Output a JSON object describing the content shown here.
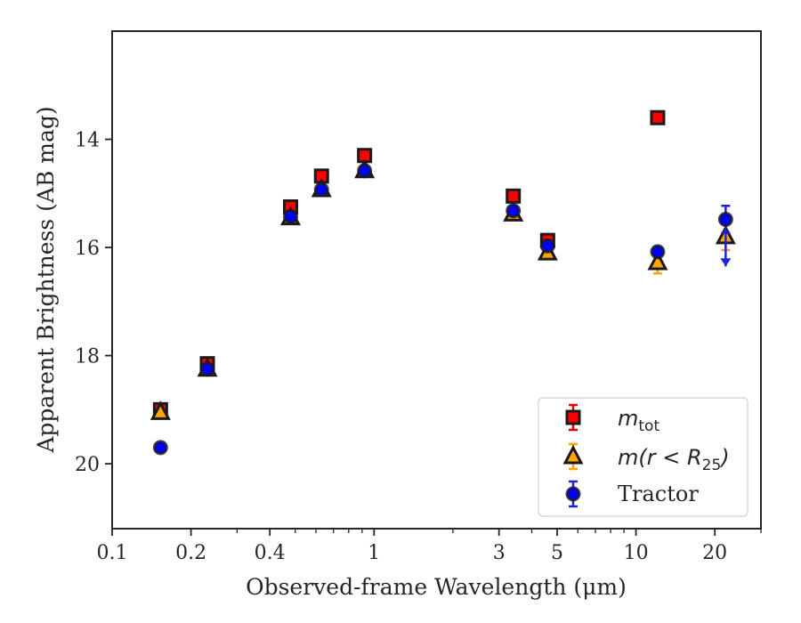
{
  "chart_data": {
    "type": "scatter",
    "xlabel": "Observed-frame Wavelength (μm)",
    "ylabel": "Apparent Brightness (AB mag)",
    "xscale": "log",
    "xlim": [
      0.1,
      30
    ],
    "ylim": [
      21.2,
      12.0
    ],
    "y_inverted": true,
    "xticks": [
      0.1,
      0.2,
      0.4,
      1,
      3,
      5,
      10,
      20
    ],
    "xtick_labels": [
      "0.1",
      "0.2",
      "0.4",
      "1",
      "3",
      "5",
      "10",
      "20"
    ],
    "yticks": [
      14,
      16,
      18,
      20
    ],
    "ytick_labels": [
      "14",
      "16",
      "18",
      "20"
    ],
    "grid": false,
    "legend_position": "bottom-right",
    "series": [
      {
        "name": "m_tot",
        "marker": "square",
        "color": "#ff0000",
        "edgecolor": "#1a1a1a",
        "errcolor": "#e00000",
        "points": [
          {
            "x": 0.153,
            "y": 19.0,
            "err": 0.08
          },
          {
            "x": 0.231,
            "y": 18.15,
            "err": 0.05
          },
          {
            "x": 0.48,
            "y": 15.25,
            "err": 0.03
          },
          {
            "x": 0.63,
            "y": 14.68,
            "err": 0.03
          },
          {
            "x": 0.92,
            "y": 14.3,
            "err": 0.03
          },
          {
            "x": 3.4,
            "y": 15.05,
            "err": 0.03
          },
          {
            "x": 4.6,
            "y": 15.87,
            "err": 0.03
          },
          {
            "x": 12.1,
            "y": 13.6,
            "err": 0.03
          }
        ]
      },
      {
        "name": "m(r < R25)",
        "marker": "triangle",
        "color": "#ffa500",
        "edgecolor": "#1a1a1a",
        "errcolor": "#ffa500",
        "points": [
          {
            "x": 0.153,
            "y": 19.05,
            "err": 0.05
          },
          {
            "x": 0.231,
            "y": 18.25,
            "err": 0.05
          },
          {
            "x": 0.48,
            "y": 15.45,
            "err": 0.03
          },
          {
            "x": 0.63,
            "y": 14.93,
            "err": 0.03
          },
          {
            "x": 0.92,
            "y": 14.58,
            "err": 0.03
          },
          {
            "x": 3.4,
            "y": 15.38,
            "err": 0.03
          },
          {
            "x": 4.6,
            "y": 16.1,
            "err": 0.05
          },
          {
            "x": 12.1,
            "y": 16.28,
            "err": 0.2
          },
          {
            "x": 22.0,
            "y": 15.8,
            "err": 0.25
          }
        ]
      },
      {
        "name": "Tractor",
        "marker": "circle",
        "color": "#0000ff",
        "edgecolor": "#1a1a1a",
        "errcolor": "#2020e0",
        "points": [
          {
            "x": 0.153,
            "y": 19.7,
            "err": 0.05
          },
          {
            "x": 0.231,
            "y": 18.25,
            "err": 0.05
          },
          {
            "x": 0.48,
            "y": 15.43,
            "err": 0.03
          },
          {
            "x": 0.63,
            "y": 14.93,
            "err": 0.03
          },
          {
            "x": 0.92,
            "y": 14.58,
            "err": 0.03
          },
          {
            "x": 3.4,
            "y": 15.32,
            "err": 0.03
          },
          {
            "x": 4.6,
            "y": 15.97,
            "err": 0.03
          },
          {
            "x": 12.1,
            "y": 16.08,
            "err": 0.05
          },
          {
            "x": 22.0,
            "y": 15.48,
            "err": 0.25,
            "upper_limit_to": 16.35
          }
        ]
      }
    ]
  }
}
